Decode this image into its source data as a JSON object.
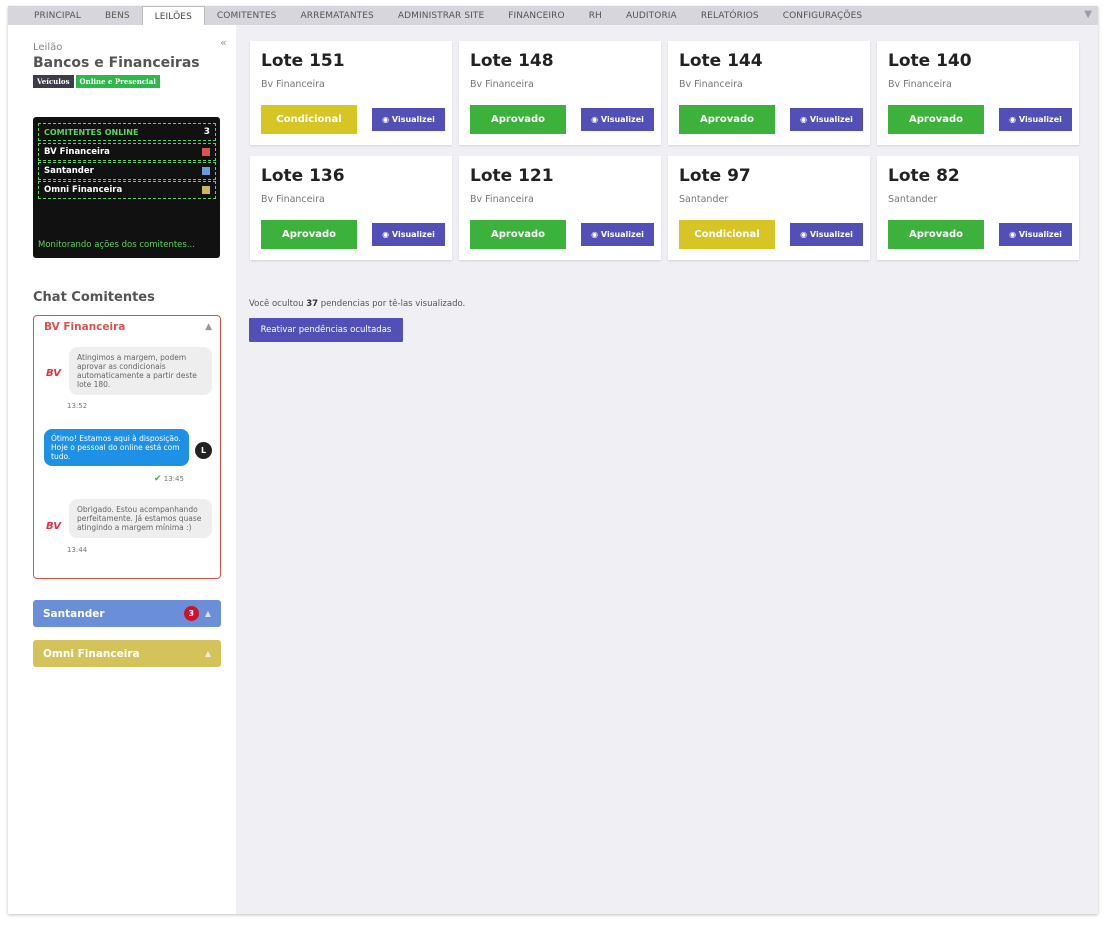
{
  "nav": {
    "tabs": [
      "PRINCIPAL",
      "BENS",
      "LEILÕES",
      "COMITENTES",
      "ARREMATANTES",
      "ADMINISTRAR SITE",
      "FINANCEIRO",
      "RH",
      "AUDITORIA",
      "RELATÓRIOS",
      "CONFIGURAÇÕES"
    ],
    "active": "LEILÕES"
  },
  "auction": {
    "label": "Leilão",
    "title": "Bancos e Financeiras",
    "tags": [
      "Veículos",
      "Online e Presencial"
    ]
  },
  "online": {
    "header": "COMITENTES ONLINE",
    "count": "3",
    "rows": [
      {
        "name": "BV Financeira",
        "color": "#d9534f"
      },
      {
        "name": "Santander",
        "color": "#6a9ae0"
      },
      {
        "name": "Omni Financeira",
        "color": "#c8b860"
      }
    ],
    "monitor_text": "Monitorando ações dos comitentes..."
  },
  "chat": {
    "title": "Chat Comitentes",
    "open": {
      "name": "BV Financeira",
      "logo": "BV",
      "messages": [
        {
          "text": "Atingimos a margem, podem aprovar as condicionais automaticamente a partir deste lote 180.",
          "time": "13:52"
        },
        {
          "text": "Ótimo! Estamos aqui à disposição. Hoje o pessoal do online está com tudo.",
          "time": "13:45",
          "avatar": "L"
        },
        {
          "text": "Obrigado. Estou acompanhando perfeitamente. Já estamos quase atingindo a margem mínima :)",
          "time": "13:44"
        }
      ]
    },
    "collapsed": [
      {
        "name": "Santander",
        "badge": "3",
        "color": "#6a8fd8"
      },
      {
        "name": "Omni Financeira",
        "badge": "",
        "color": "#d3c35a"
      }
    ]
  },
  "lots": [
    {
      "lote": "Lote 151",
      "bank": "Bv Financeira",
      "status": "Condicional"
    },
    {
      "lote": "Lote 148",
      "bank": "Bv Financeira",
      "status": "Aprovado"
    },
    {
      "lote": "Lote 144",
      "bank": "Bv Financeira",
      "status": "Aprovado"
    },
    {
      "lote": "Lote 140",
      "bank": "Bv Financeira",
      "status": "Aprovado"
    },
    {
      "lote": "Lote 136",
      "bank": "Bv Financeira",
      "status": "Aprovado"
    },
    {
      "lote": "Lote 121",
      "bank": "Bv Financeira",
      "status": "Aprovado"
    },
    {
      "lote": "Lote 97",
      "bank": "Santander",
      "status": "Condicional"
    },
    {
      "lote": "Lote 82",
      "bank": "Santander",
      "status": "Aprovado"
    }
  ],
  "view_label": "Visualizei",
  "hidden": {
    "prefix": "Você ocultou",
    "count": "37",
    "suffix": "pendencias por tê-las visualizado.",
    "button": "Reativar pendências ocultadas"
  }
}
